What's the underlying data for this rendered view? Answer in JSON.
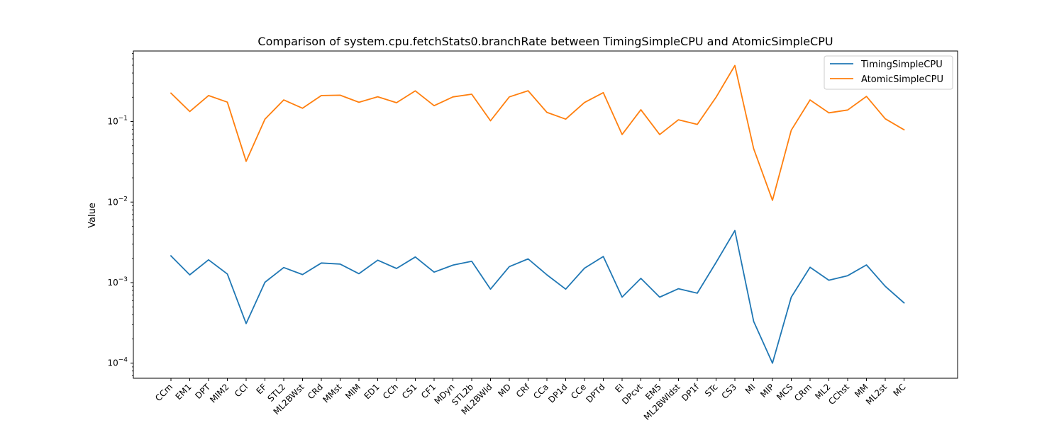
{
  "chart_data": {
    "type": "line",
    "title": "Comparison of system.cpu.fetchStats0.branchRate between TimingSimpleCPU and AtomicSimpleCPU",
    "xlabel": "",
    "ylabel": "Value",
    "yscale": "log",
    "ylim": [
      6.5e-05,
      0.75
    ],
    "yticks": [
      {
        "value": 0.0001,
        "base": "10",
        "exp": "−4"
      },
      {
        "value": 0.001,
        "base": "10",
        "exp": "−3"
      },
      {
        "value": 0.01,
        "base": "10",
        "exp": "−2"
      },
      {
        "value": 0.1,
        "base": "10",
        "exp": "−1"
      }
    ],
    "grid": false,
    "legend_position": "top-right",
    "categories": [
      "CCm",
      "EM1",
      "DPT",
      "MIM2",
      "CCl",
      "EF",
      "STL2",
      "ML2BWst",
      "CRd",
      "MMst",
      "MIM",
      "ED1",
      "CCh",
      "CS1",
      "CF1",
      "MDyn",
      "STL2b",
      "ML2BWld",
      "MD",
      "CRf",
      "CCa",
      "DP1d",
      "CCe",
      "DPTd",
      "EI",
      "DPcvt",
      "EM5",
      "ML2BWldst",
      "DP1f",
      "STc",
      "CS3",
      "MI",
      "MIP",
      "MCS",
      "CRm",
      "ML2",
      "CChst",
      "MM",
      "ML2st",
      "MC"
    ],
    "series": [
      {
        "name": "TimingSimpleCPU",
        "color": "#1f77b4",
        "values": [
          0.00215,
          0.00125,
          0.00192,
          0.00128,
          0.00031,
          0.00101,
          0.00154,
          0.00126,
          0.00175,
          0.0017,
          0.00129,
          0.0019,
          0.0015,
          0.00208,
          0.00135,
          0.00165,
          0.00184,
          0.00083,
          0.00158,
          0.00197,
          0.00125,
          0.00083,
          0.00151,
          0.00211,
          0.00066,
          0.00113,
          0.00066,
          0.00084,
          0.00074,
          0.00178,
          0.00443,
          0.00033,
          0.0001,
          0.00066,
          0.00155,
          0.00107,
          0.00122,
          0.00166,
          0.0009,
          0.00056
        ]
      },
      {
        "name": "AtomicSimpleCPU",
        "color": "#ff7f0e",
        "values": [
          0.225,
          0.133,
          0.21,
          0.174,
          0.032,
          0.107,
          0.185,
          0.146,
          0.21,
          0.212,
          0.173,
          0.203,
          0.171,
          0.24,
          0.157,
          0.202,
          0.218,
          0.102,
          0.202,
          0.241,
          0.13,
          0.107,
          0.172,
          0.228,
          0.069,
          0.14,
          0.069,
          0.105,
          0.092,
          0.2,
          0.495,
          0.046,
          0.0105,
          0.078,
          0.185,
          0.128,
          0.139,
          0.205,
          0.108,
          0.079
        ]
      }
    ]
  }
}
